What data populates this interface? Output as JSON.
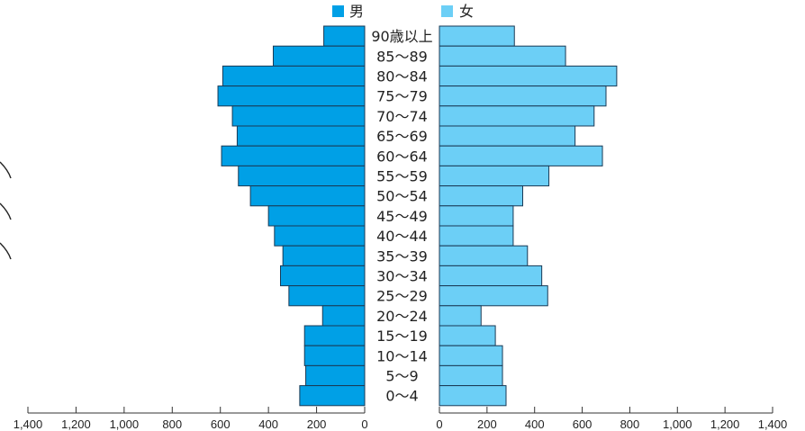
{
  "chart_data": {
    "type": "bar",
    "orientation": "horizontal-population-pyramid",
    "legend": {
      "male": {
        "label": "男",
        "color": "#00a0e6"
      },
      "female": {
        "label": "女",
        "color": "#6ccff6"
      }
    },
    "categories": [
      "90歳以上",
      "85〜89",
      "80〜84",
      "75〜79",
      "70〜74",
      "65〜69",
      "60〜64",
      "55〜59",
      "50〜54",
      "45〜49",
      "40〜44",
      "35〜39",
      "30〜34",
      "25〜29",
      "20〜24",
      "15〜19",
      "10〜14",
      "5〜9",
      "0〜4"
    ],
    "series": [
      {
        "name": "男",
        "color": "#00a0e6",
        "values": [
          170,
          380,
          590,
          610,
          550,
          530,
          595,
          525,
          475,
          400,
          375,
          340,
          350,
          315,
          175,
          250,
          250,
          245,
          270
        ]
      },
      {
        "name": "女",
        "color": "#6ccff6",
        "values": [
          315,
          530,
          745,
          700,
          650,
          570,
          685,
          460,
          350,
          310,
          310,
          370,
          430,
          455,
          175,
          235,
          265,
          265,
          280
        ]
      }
    ],
    "left_axis_ticks": [
      "1,400",
      "1,200",
      "1,000",
      "800",
      "600",
      "400",
      "200",
      "0"
    ],
    "right_axis_ticks": [
      "0",
      "200",
      "400",
      "600",
      "800",
      "1,000",
      "1,200",
      "1,400"
    ],
    "xlim": [
      0,
      1400
    ]
  }
}
